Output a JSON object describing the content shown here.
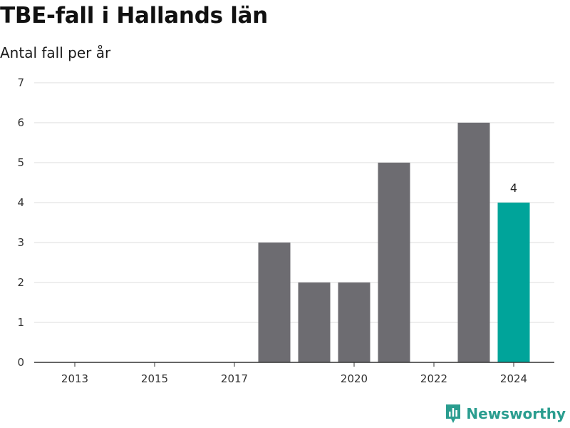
{
  "title": "TBE-fall i Hallands län",
  "subtitle": "Antal fall per år",
  "brand": {
    "name": "Newsworthy",
    "icon": "newsworthy-logo-icon",
    "color": "#2a9d8f"
  },
  "chart_data": {
    "type": "bar",
    "categories": [
      2013,
      2014,
      2015,
      2016,
      2017,
      2018,
      2019,
      2020,
      2021,
      2022,
      2023,
      2024
    ],
    "values": [
      0,
      0,
      0,
      0,
      0,
      3,
      2,
      2,
      5,
      0,
      6,
      4
    ],
    "x_tick_labels": [
      "2013",
      "2015",
      "2017",
      "2020",
      "2022",
      "2024"
    ],
    "y_ticks": [
      0,
      1,
      2,
      3,
      4,
      5,
      6,
      7
    ],
    "ylim": [
      0,
      7
    ],
    "data_labels": [
      {
        "category": 2024,
        "text": "4"
      }
    ],
    "highlight_category": 2024,
    "colors": {
      "bar": "#6d6c71",
      "highlight": "#00a49a",
      "grid": "#dddddd",
      "axis": "#333333"
    },
    "grid": true,
    "legend": "none"
  }
}
